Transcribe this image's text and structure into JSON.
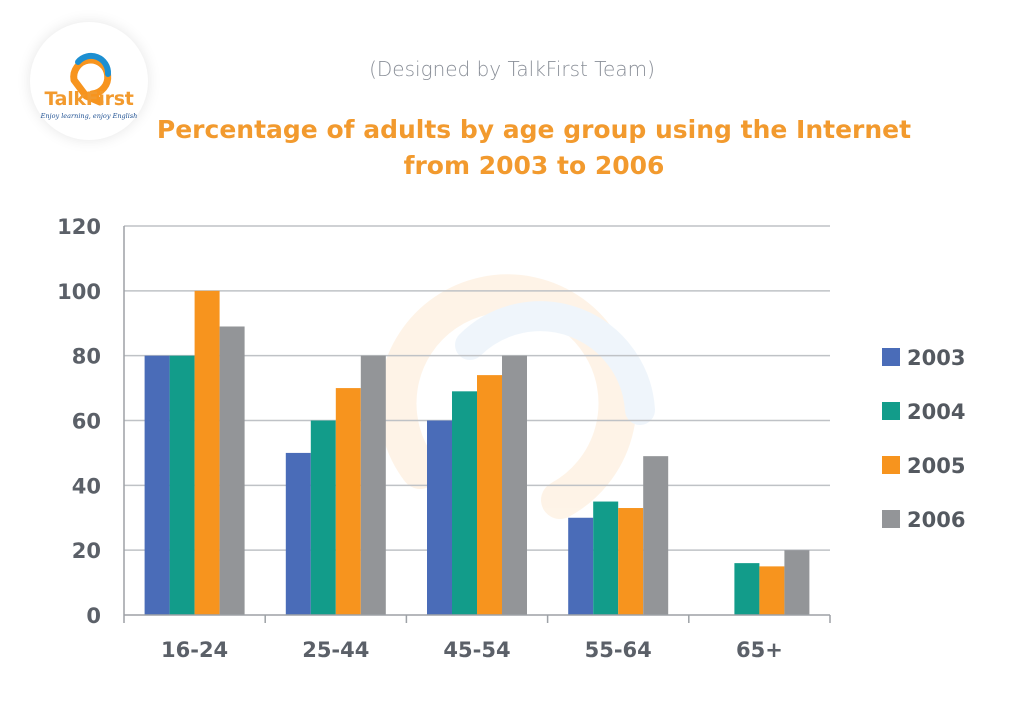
{
  "brand": {
    "name": "TalkFirst",
    "tagline": "Enjoy learning, enjoy English",
    "name_color": "#f29a2e",
    "tagline_color": "#1d4f91",
    "logo_icon": "speech-bubble-icon"
  },
  "credit": "(Designed by TalkFirst Team)",
  "colors": {
    "title": "#f29a2e",
    "grid": "#bfc2c6",
    "axis": "#9da1a6"
  },
  "chart_data": {
    "type": "bar",
    "title": "Percentage of adults by age group using the Internet from 2003 to 2006",
    "xlabel": "",
    "ylabel": "",
    "ylim": [
      0,
      120
    ],
    "yticks": [
      0,
      20,
      40,
      60,
      80,
      100,
      120
    ],
    "grid": true,
    "legend_position": "right",
    "categories": [
      "16-24",
      "25-44",
      "45-54",
      "55-64",
      "65+"
    ],
    "series": [
      {
        "name": "2003",
        "color": "#4a6cb8",
        "values": [
          80,
          50,
          60,
          30,
          null
        ]
      },
      {
        "name": "2004",
        "color": "#129c8a",
        "values": [
          80,
          60,
          69,
          35,
          16
        ]
      },
      {
        "name": "2005",
        "color": "#f7941e",
        "values": [
          100,
          70,
          74,
          33,
          15
        ]
      },
      {
        "name": "2006",
        "color": "#939598",
        "values": [
          89,
          80,
          80,
          49,
          20
        ]
      }
    ]
  }
}
